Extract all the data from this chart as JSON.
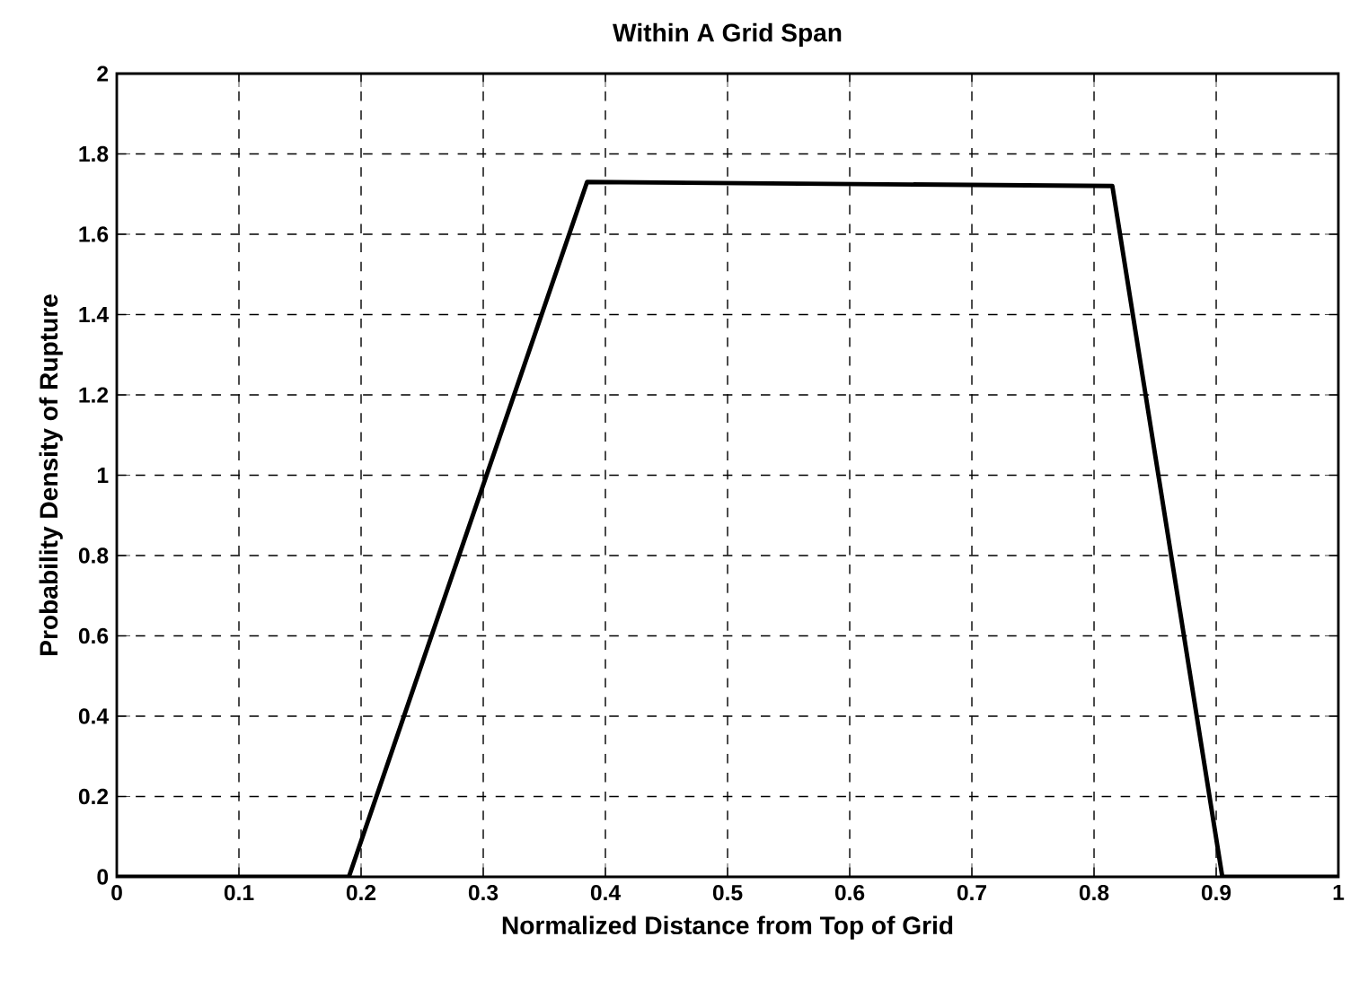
{
  "chart_data": {
    "type": "line",
    "title": "Within A Grid Span",
    "xlabel": "Normalized Distance from Top of Grid",
    "ylabel": "Probability Density of Rupture",
    "x": [
      0,
      0.19,
      0.385,
      0.815,
      0.905,
      1
    ],
    "series": [
      {
        "color": "#000000",
        "values": [
          0,
          0,
          1.73,
          1.72,
          0,
          0
        ]
      }
    ],
    "xlim": [
      0,
      1
    ],
    "xticks": [
      0,
      0.1,
      0.2,
      0.3,
      0.4,
      0.5,
      0.6,
      0.7,
      0.8,
      0.9,
      1
    ],
    "ylim": [
      0,
      2
    ],
    "yticks": [
      0,
      0.2,
      0.4,
      0.6,
      0.8,
      1,
      1.2,
      1.4,
      1.6,
      1.8,
      2
    ],
    "grid": true,
    "line_style": "solid",
    "marker": "none"
  }
}
